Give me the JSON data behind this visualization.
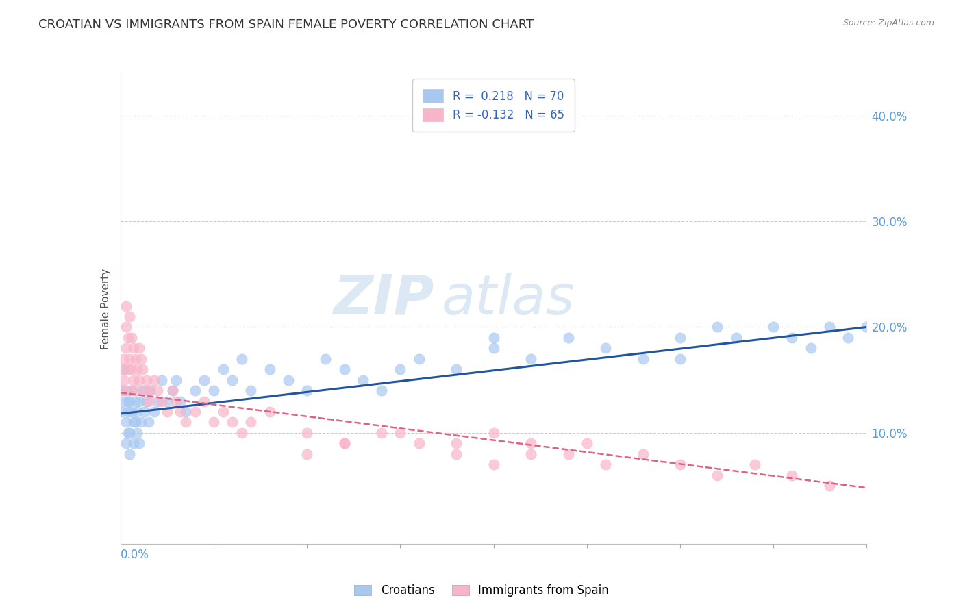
{
  "title": "CROATIAN VS IMMIGRANTS FROM SPAIN FEMALE POVERTY CORRELATION CHART",
  "source": "Source: ZipAtlas.com",
  "ylabel": "Female Poverty",
  "xmin": 0.0,
  "xmax": 0.4,
  "ymin": -0.005,
  "ymax": 0.44,
  "r_croatian": 0.218,
  "n_croatian": 70,
  "r_spain": -0.132,
  "n_spain": 65,
  "color_croatian": "#a8c8f0",
  "color_spain": "#f8b4c8",
  "line_color_croatian": "#2255a0",
  "line_color_spain": "#e06080",
  "watermark_zip": "ZIP",
  "watermark_atlas": "atlas",
  "watermark_color": "#dde8f5",
  "legend_label_croatian": "Croatians",
  "legend_label_spain": "Immigrants from Spain",
  "croatian_trend_start": 0.118,
  "croatian_trend_end": 0.2,
  "spain_trend_start": 0.138,
  "spain_trend_end": 0.048,
  "croatian_x": [
    0.001,
    0.001,
    0.002,
    0.002,
    0.003,
    0.003,
    0.003,
    0.004,
    0.004,
    0.004,
    0.005,
    0.005,
    0.005,
    0.006,
    0.006,
    0.007,
    0.007,
    0.008,
    0.008,
    0.009,
    0.009,
    0.01,
    0.01,
    0.011,
    0.012,
    0.013,
    0.014,
    0.015,
    0.016,
    0.018,
    0.02,
    0.022,
    0.025,
    0.028,
    0.03,
    0.032,
    0.035,
    0.04,
    0.045,
    0.05,
    0.055,
    0.06,
    0.065,
    0.07,
    0.08,
    0.09,
    0.1,
    0.11,
    0.12,
    0.13,
    0.14,
    0.15,
    0.16,
    0.18,
    0.2,
    0.22,
    0.24,
    0.26,
    0.28,
    0.3,
    0.32,
    0.33,
    0.35,
    0.36,
    0.37,
    0.38,
    0.39,
    0.4,
    0.2,
    0.3
  ],
  "croatian_y": [
    0.14,
    0.12,
    0.16,
    0.13,
    0.11,
    0.09,
    0.14,
    0.13,
    0.1,
    0.12,
    0.08,
    0.1,
    0.13,
    0.14,
    0.12,
    0.11,
    0.09,
    0.13,
    0.11,
    0.1,
    0.12,
    0.09,
    0.13,
    0.11,
    0.14,
    0.12,
    0.13,
    0.11,
    0.14,
    0.12,
    0.13,
    0.15,
    0.13,
    0.14,
    0.15,
    0.13,
    0.12,
    0.14,
    0.15,
    0.14,
    0.16,
    0.15,
    0.17,
    0.14,
    0.16,
    0.15,
    0.14,
    0.17,
    0.16,
    0.15,
    0.14,
    0.16,
    0.17,
    0.16,
    0.18,
    0.17,
    0.19,
    0.18,
    0.17,
    0.19,
    0.2,
    0.19,
    0.2,
    0.19,
    0.18,
    0.2,
    0.19,
    0.2,
    0.19,
    0.17
  ],
  "spain_x": [
    0.001,
    0.001,
    0.002,
    0.002,
    0.003,
    0.003,
    0.003,
    0.004,
    0.004,
    0.005,
    0.005,
    0.005,
    0.006,
    0.006,
    0.007,
    0.007,
    0.008,
    0.008,
    0.009,
    0.01,
    0.01,
    0.011,
    0.012,
    0.013,
    0.014,
    0.015,
    0.016,
    0.018,
    0.02,
    0.022,
    0.025,
    0.028,
    0.03,
    0.032,
    0.035,
    0.04,
    0.045,
    0.05,
    0.055,
    0.06,
    0.065,
    0.07,
    0.08,
    0.1,
    0.12,
    0.15,
    0.18,
    0.2,
    0.22,
    0.25,
    0.1,
    0.12,
    0.14,
    0.16,
    0.18,
    0.2,
    0.22,
    0.24,
    0.26,
    0.28,
    0.3,
    0.32,
    0.34,
    0.36,
    0.38
  ],
  "spain_y": [
    0.16,
    0.14,
    0.17,
    0.15,
    0.2,
    0.18,
    0.22,
    0.19,
    0.16,
    0.21,
    0.17,
    0.14,
    0.19,
    0.16,
    0.18,
    0.15,
    0.17,
    0.14,
    0.16,
    0.18,
    0.15,
    0.17,
    0.16,
    0.14,
    0.15,
    0.13,
    0.14,
    0.15,
    0.14,
    0.13,
    0.12,
    0.14,
    0.13,
    0.12,
    0.11,
    0.12,
    0.13,
    0.11,
    0.12,
    0.11,
    0.1,
    0.11,
    0.12,
    0.1,
    0.09,
    0.1,
    0.09,
    0.1,
    0.08,
    0.09,
    0.08,
    0.09,
    0.1,
    0.09,
    0.08,
    0.07,
    0.09,
    0.08,
    0.07,
    0.08,
    0.07,
    0.06,
    0.07,
    0.06,
    0.05
  ]
}
